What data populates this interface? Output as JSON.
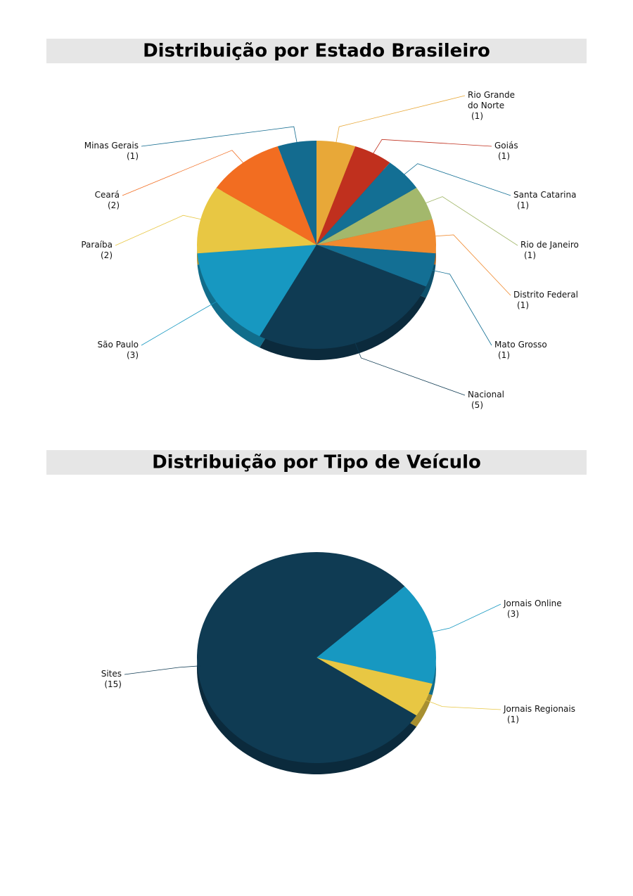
{
  "chart_data": [
    {
      "type": "pie",
      "title": "Distribuição por Estado Brasileiro",
      "categories": [
        "Rio Grande do Norte",
        "Goiás",
        "Santa Catarina",
        "Rio de Janeiro",
        "Distrito Federal",
        "Mato Grosso",
        "Nacional",
        "São Paulo",
        "Paraíba",
        "Ceará",
        "Minas Gerais"
      ],
      "values": [
        1,
        1,
        1,
        1,
        1,
        1,
        5,
        3,
        2,
        2,
        1
      ],
      "value_labels": [
        "(1)",
        "(1)",
        "(1)",
        "(1)",
        "(1)",
        "(1)",
        "(5)",
        "(3)",
        "(2)",
        "(2)",
        "(1)"
      ],
      "colors": [
        "#e8a838",
        "#c0301e",
        "#136f94",
        "#a3b86c",
        "#f08a2f",
        "#136f94",
        "#0f3b53",
        "#1798c1",
        "#e8c743",
        "#f26d21",
        "#136b8f"
      ]
    },
    {
      "type": "pie",
      "title": "Distribuição por Tipo de Veículo",
      "categories": [
        "Jornais Online",
        "Jornais Regionais",
        "Sites"
      ],
      "values": [
        3,
        1,
        15
      ],
      "value_labels": [
        "(3)",
        "(1)",
        "(15)"
      ],
      "colors": [
        "#1798c1",
        "#e8c743",
        "#0f3b53"
      ]
    }
  ]
}
